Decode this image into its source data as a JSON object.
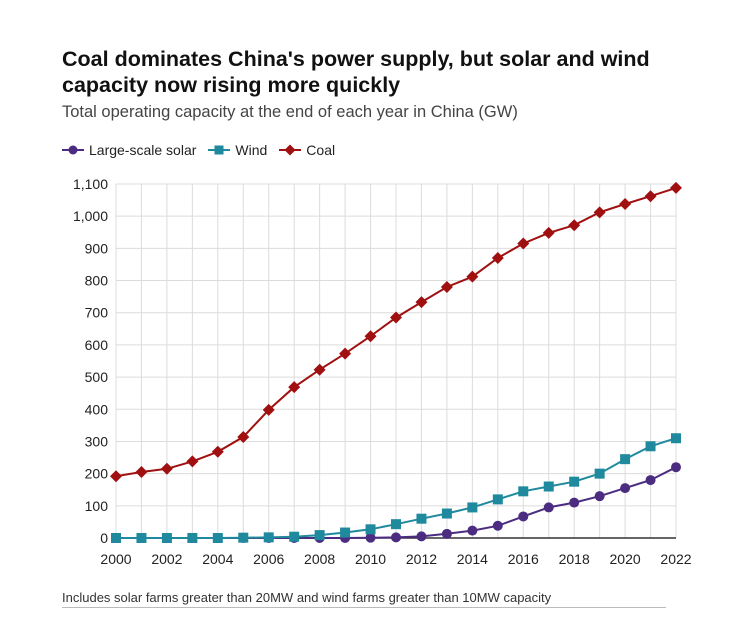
{
  "header": {
    "title": "Coal dominates China's power supply, but solar and wind capacity now rising more quickly",
    "subtitle": "Total operating capacity at the end of each year in China (GW)"
  },
  "footnote": "Includes solar farms greater than 20MW and wind farms greater than 10MW capacity",
  "chart_data": {
    "type": "line",
    "title": "Coal dominates China's power supply, but solar and wind capacity now rising more quickly",
    "subtitle": "Total operating capacity at the end of each year in China (GW)",
    "x": [
      2000,
      2001,
      2002,
      2003,
      2004,
      2005,
      2006,
      2007,
      2008,
      2009,
      2010,
      2011,
      2012,
      2013,
      2014,
      2015,
      2016,
      2017,
      2018,
      2019,
      2020,
      2021,
      2022
    ],
    "x_ticks": [
      "2000",
      "2002",
      "2004",
      "2006",
      "2008",
      "2010",
      "2012",
      "2014",
      "2016",
      "2018",
      "2020",
      "2022"
    ],
    "y_ticks": [
      "0",
      "100",
      "200",
      "300",
      "400",
      "500",
      "600",
      "700",
      "800",
      "900",
      "1,000",
      "1,100"
    ],
    "ylim": [
      0,
      1100
    ],
    "xlim": [
      2000,
      2022
    ],
    "grid": true,
    "legend_position": "top-left",
    "series": [
      {
        "name": "Large-scale solar",
        "color": "#4b2c80",
        "marker": "circle",
        "values": [
          0,
          0,
          0,
          0,
          0,
          0,
          0,
          0,
          0,
          0,
          1,
          2,
          5,
          13,
          23,
          38,
          67,
          95,
          110,
          130,
          155,
          180,
          220
        ]
      },
      {
        "name": "Wind",
        "color": "#1f8a9e",
        "marker": "square",
        "values": [
          0,
          0,
          0,
          0,
          0,
          1,
          2,
          4,
          9,
          17,
          27,
          43,
          60,
          76,
          95,
          120,
          145,
          160,
          175,
          200,
          245,
          285,
          310
        ]
      },
      {
        "name": "Coal",
        "color": "#a01010",
        "marker": "diamond",
        "values": [
          192,
          205,
          215,
          238,
          268,
          314,
          398,
          469,
          523,
          573,
          627,
          685,
          733,
          780,
          812,
          870,
          915,
          948,
          972,
          1012,
          1038,
          1062,
          1088
        ]
      }
    ]
  }
}
